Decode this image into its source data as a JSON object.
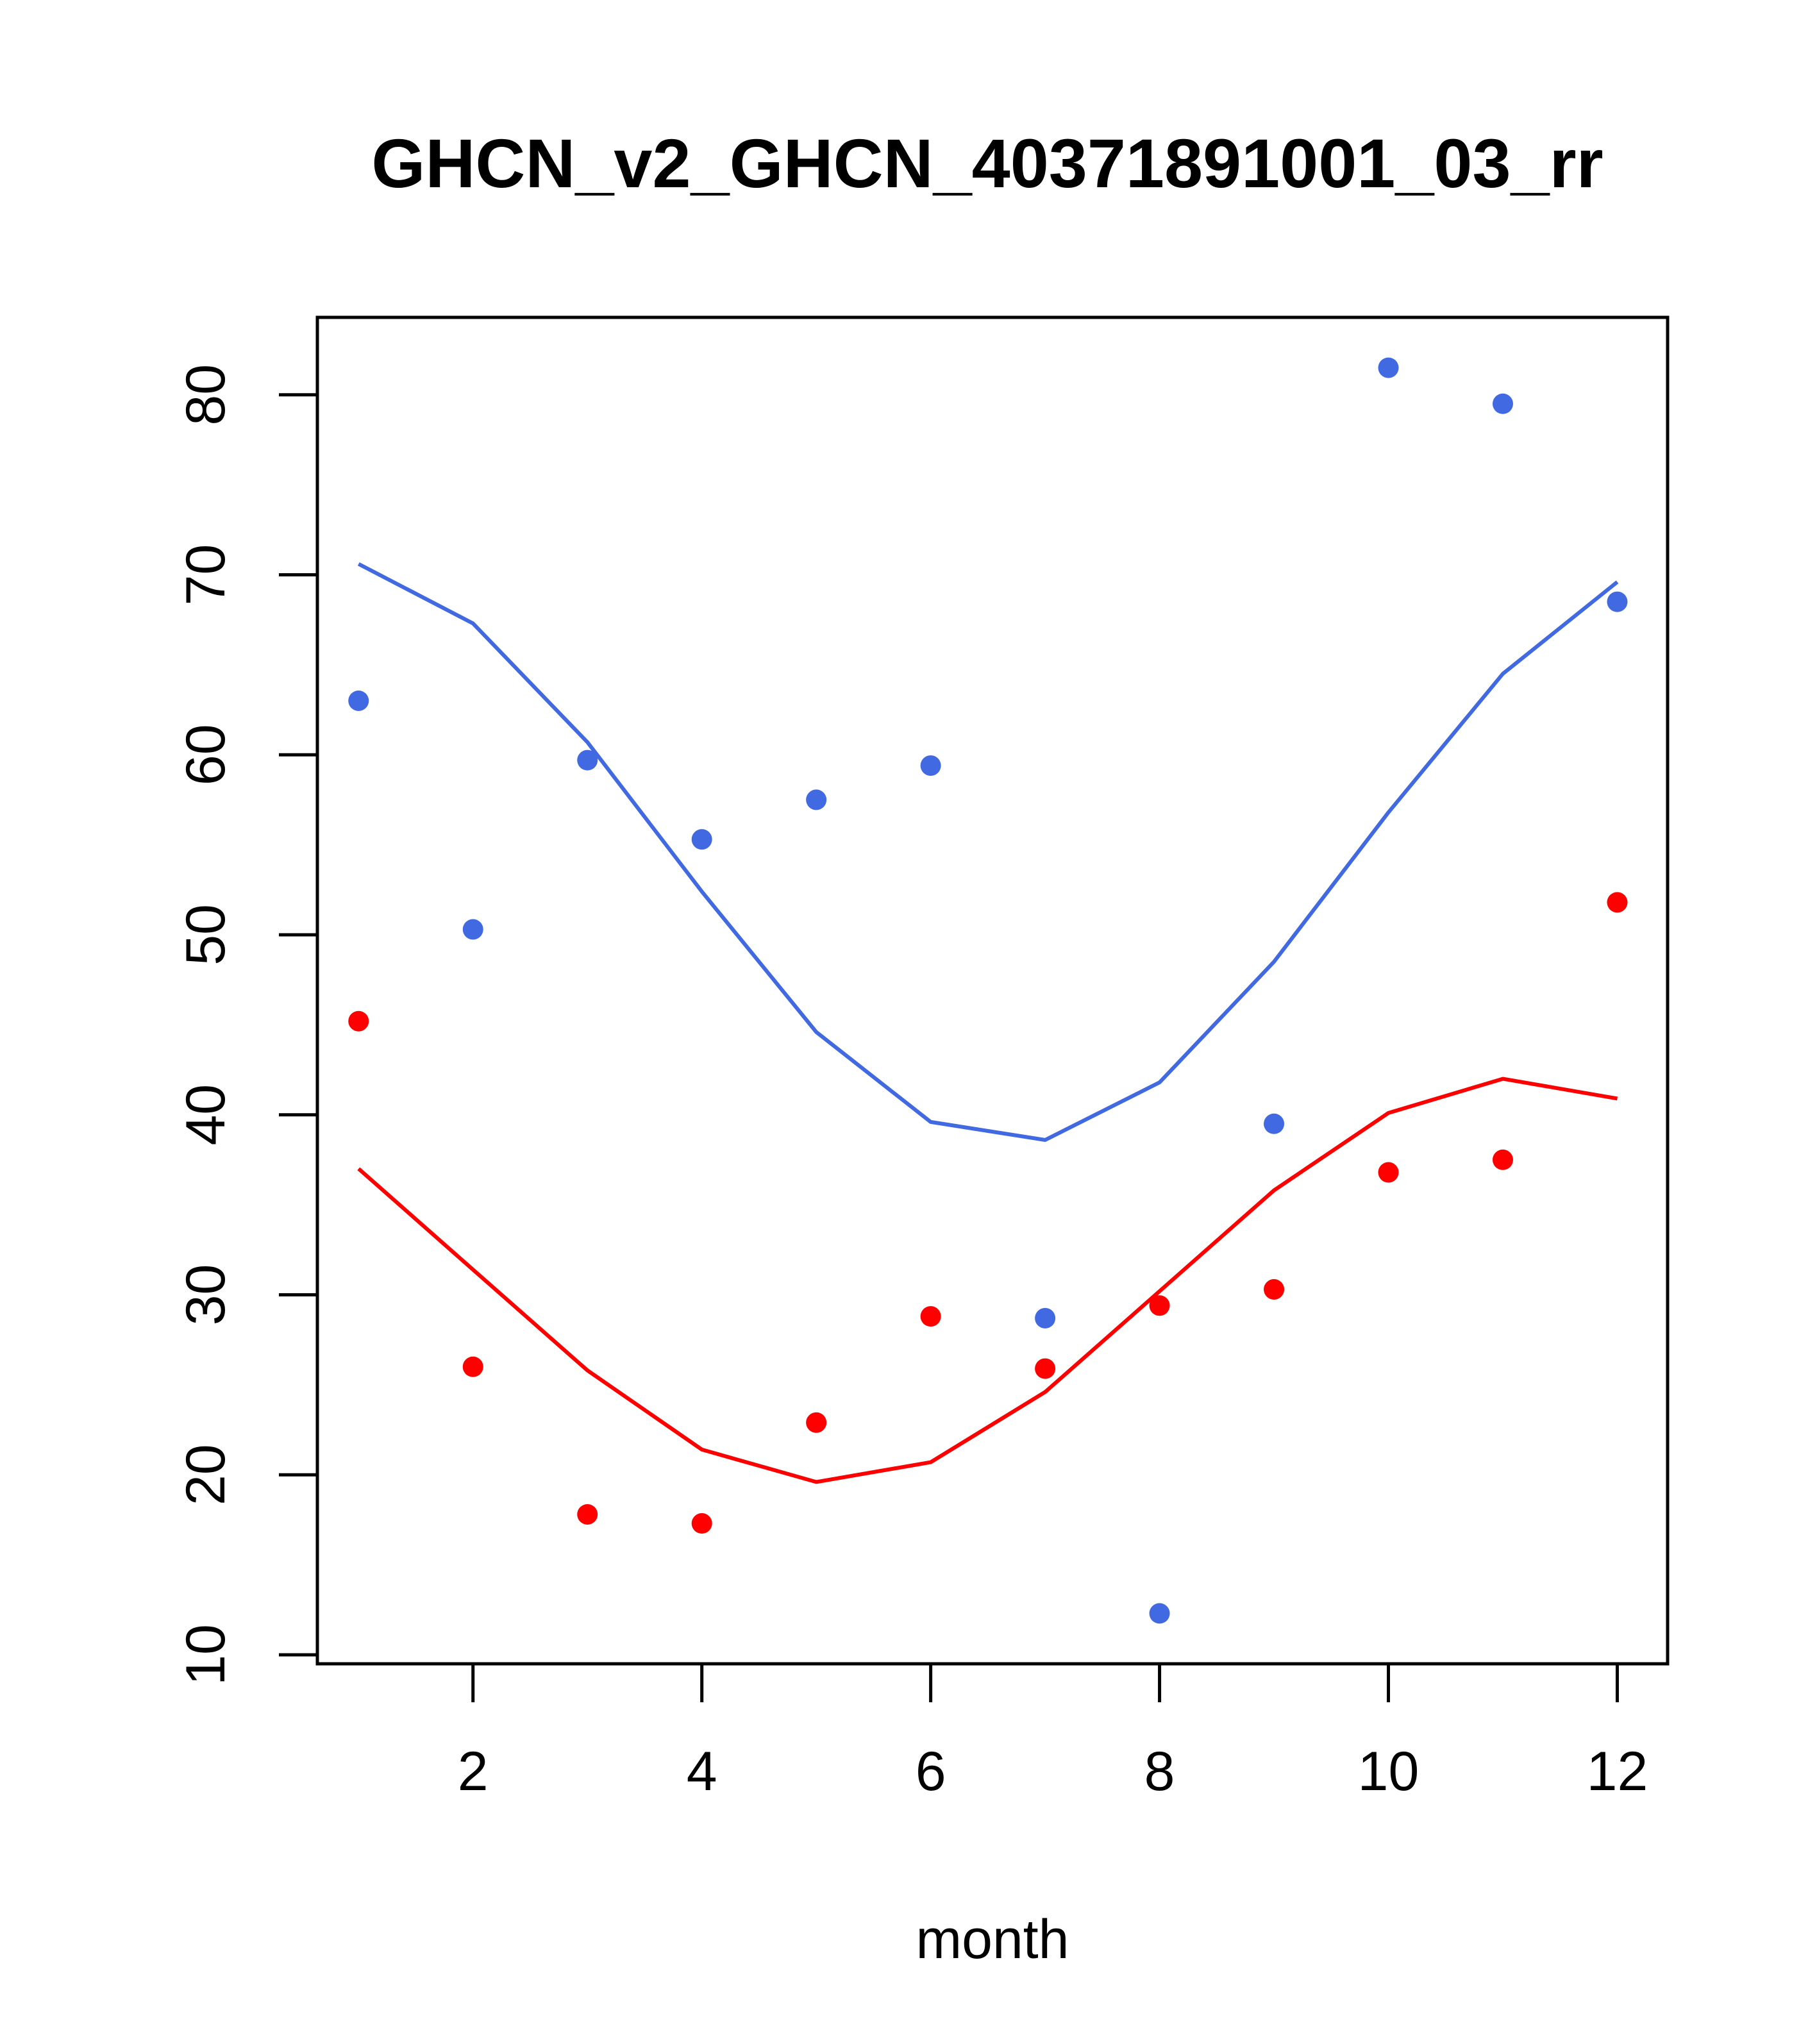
{
  "chart_data": {
    "type": "scatter",
    "title": "GHCN_v2_GHCN_40371891001_03_rr",
    "xlabel": "month",
    "ylabel": "",
    "xlim": [
      0.64,
      12.44
    ],
    "ylim": [
      9.5,
      84.3
    ],
    "xticks": [
      2,
      4,
      6,
      8,
      10,
      12
    ],
    "yticks": [
      10,
      20,
      30,
      40,
      50,
      60,
      70,
      80
    ],
    "grid": false,
    "series": [
      {
        "color": "#4169E1",
        "points": [
          {
            "x": 1,
            "y": 63.0
          },
          {
            "x": 2,
            "y": 50.3
          },
          {
            "x": 3,
            "y": 59.7
          },
          {
            "x": 4,
            "y": 55.3
          },
          {
            "x": 5,
            "y": 57.5
          },
          {
            "x": 6,
            "y": 59.4
          },
          {
            "x": 7,
            "y": 28.7
          },
          {
            "x": 8,
            "y": 12.3
          },
          {
            "x": 9,
            "y": 39.5
          },
          {
            "x": 10,
            "y": 81.5
          },
          {
            "x": 11,
            "y": 79.5
          },
          {
            "x": 12,
            "y": 68.5
          }
        ],
        "line": [
          70.6,
          67.3,
          60.7,
          52.4,
          44.6,
          39.6,
          38.6,
          41.8,
          48.5,
          56.8,
          64.5,
          69.6
        ]
      },
      {
        "color": "#FF0000",
        "points": [
          {
            "x": 1,
            "y": 45.2
          },
          {
            "x": 2,
            "y": 26.0
          },
          {
            "x": 3,
            "y": 17.8
          },
          {
            "x": 4,
            "y": 17.3
          },
          {
            "x": 5,
            "y": 22.9
          },
          {
            "x": 6,
            "y": 28.8
          },
          {
            "x": 7,
            "y": 25.9
          },
          {
            "x": 8,
            "y": 29.4
          },
          {
            "x": 9,
            "y": 30.3
          },
          {
            "x": 10,
            "y": 36.8
          },
          {
            "x": 11,
            "y": 37.5
          },
          {
            "x": 12,
            "y": 51.8
          }
        ],
        "line": [
          37.0,
          31.4,
          25.8,
          21.4,
          19.6,
          20.7,
          24.6,
          30.2,
          35.8,
          40.1,
          42.0,
          40.9
        ]
      }
    ]
  }
}
